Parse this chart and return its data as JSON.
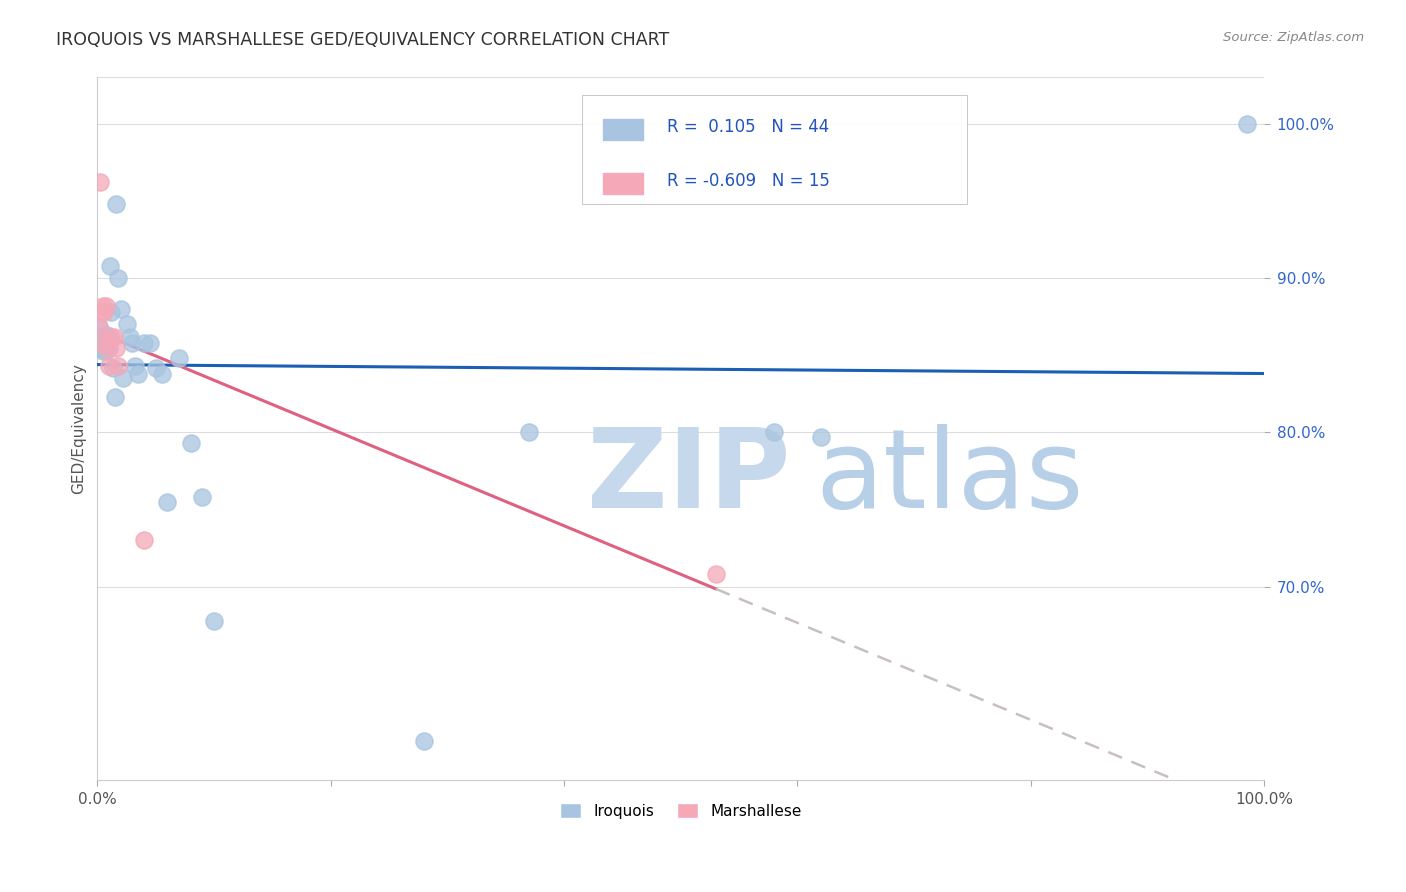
{
  "title": "IROQUOIS VS MARSHALLESE GED/EQUIVALENCY CORRELATION CHART",
  "source": "Source: ZipAtlas.com",
  "ylabel": "GED/Equivalency",
  "xlim": [
    0.0,
    1.0
  ],
  "ylim": [
    0.575,
    1.03
  ],
  "yticks": [
    0.7,
    0.8,
    0.9,
    1.0
  ],
  "ytick_labels": [
    "70.0%",
    "80.0%",
    "90.0%",
    "100.0%"
  ],
  "r_iroquois": 0.105,
  "n_iroquois": 44,
  "r_marshallese": -0.609,
  "n_marshallese": 15,
  "iroquois_color": "#a8c4e0",
  "marshallese_color": "#f4a8b8",
  "trendline_iroquois_color": "#1a5fb4",
  "trendline_marshallese_color": "#e06080",
  "trendline_marshallese_dashed_color": "#c8bfbf",
  "background_color": "#ffffff",
  "grid_color": "#dddddd",
  "iroquois_x": [
    0.001,
    0.002,
    0.002,
    0.003,
    0.003,
    0.004,
    0.005,
    0.005,
    0.006,
    0.006,
    0.007,
    0.007,
    0.008,
    0.008,
    0.009,
    0.01,
    0.01,
    0.011,
    0.012,
    0.013,
    0.015,
    0.016,
    0.018,
    0.02,
    0.022,
    0.025,
    0.028,
    0.03,
    0.032,
    0.035,
    0.04,
    0.045,
    0.05,
    0.055,
    0.06,
    0.07,
    0.08,
    0.09,
    0.1,
    0.28,
    0.37,
    0.58,
    0.62,
    0.985
  ],
  "iroquois_y": [
    0.868,
    0.857,
    0.862,
    0.86,
    0.855,
    0.858,
    0.857,
    0.853,
    0.86,
    0.862,
    0.857,
    0.853,
    0.858,
    0.863,
    0.86,
    0.862,
    0.855,
    0.908,
    0.878,
    0.842,
    0.823,
    0.948,
    0.9,
    0.88,
    0.835,
    0.87,
    0.862,
    0.858,
    0.843,
    0.838,
    0.858,
    0.858,
    0.842,
    0.838,
    0.755,
    0.848,
    0.793,
    0.758,
    0.678,
    0.6,
    0.8,
    0.8,
    0.797,
    1.0
  ],
  "marshallese_x": [
    0.001,
    0.002,
    0.003,
    0.004,
    0.005,
    0.006,
    0.007,
    0.008,
    0.01,
    0.012,
    0.014,
    0.016,
    0.018,
    0.04,
    0.53
  ],
  "marshallese_y": [
    0.868,
    0.962,
    0.878,
    0.858,
    0.882,
    0.878,
    0.882,
    0.855,
    0.843,
    0.862,
    0.862,
    0.855,
    0.843,
    0.73,
    0.708
  ]
}
